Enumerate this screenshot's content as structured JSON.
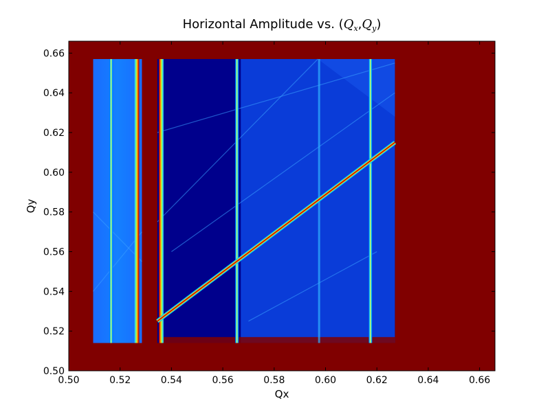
{
  "chart_data": {
    "type": "heatmap",
    "title": {
      "prefix": "Horizontal Amplitude vs. (",
      "q1": "Q",
      "s1": "x",
      "comma": ",",
      "q2": "Q",
      "s2": "y",
      "suffix": ")"
    },
    "xlabel": "Qx",
    "ylabel": "Qy",
    "xlim": [
      0.5,
      0.666
    ],
    "ylim": [
      0.5,
      0.666
    ],
    "xticks": [
      "0.50",
      "0.52",
      "0.54",
      "0.56",
      "0.58",
      "0.60",
      "0.62",
      "0.64",
      "0.66"
    ],
    "yticks": [
      "0.50",
      "0.52",
      "0.54",
      "0.56",
      "0.58",
      "0.60",
      "0.62",
      "0.64",
      "0.66"
    ],
    "grid": false,
    "colormap": "jet",
    "background_value_color": "#800000",
    "scan_region": {
      "qx": [
        0.5095,
        0.627
      ],
      "qy": [
        0.514,
        0.657
      ]
    },
    "gap_band_qx": [
      0.5285,
      0.5345
    ],
    "coupling_line": {
      "from": [
        0.5345,
        0.525
      ],
      "to": [
        0.627,
        0.615
      ]
    },
    "vertical_resonances": [
      {
        "qx": 0.5165,
        "strength": "medium"
      },
      {
        "qx": 0.5265,
        "strength": "strong"
      },
      {
        "qx": 0.536,
        "strength": "strong"
      },
      {
        "qx": 0.5655,
        "strength": "medium"
      },
      {
        "qx": 0.5975,
        "strength": "weak"
      },
      {
        "qx": 0.6175,
        "strength": "medium"
      }
    ]
  }
}
